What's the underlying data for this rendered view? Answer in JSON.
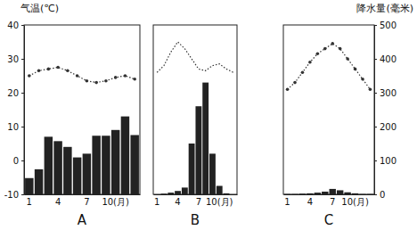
{
  "chart_data": [
    {
      "type": "combo",
      "title": "A",
      "y_label": "气温(℃)",
      "categories": [
        "1",
        null,
        null,
        "4",
        null,
        null,
        "7",
        null,
        null,
        "10(月)",
        null,
        null
      ],
      "ylim": [
        -10,
        40
      ],
      "yticks": [
        -10,
        0,
        10,
        20,
        30,
        40
      ],
      "y2lim": [
        0,
        500
      ],
      "series": [
        {
          "type": "bar",
          "axis": "y2",
          "color": "#222222",
          "values": [
            48,
            74,
            170,
            157,
            140,
            109,
            120,
            173,
            173,
            190,
            230,
            175
          ]
        },
        {
          "type": "line",
          "color": "#333333",
          "marker": "circle",
          "line_style": "dotted",
          "values": [
            25,
            26.5,
            27,
            27.5,
            26.5,
            25,
            23.5,
            23,
            23.5,
            24.5,
            25,
            24
          ]
        }
      ]
    },
    {
      "type": "combo",
      "title": "B",
      "categories": [
        "1",
        null,
        null,
        "4",
        null,
        null,
        "7",
        null,
        null,
        "10(月)",
        null,
        null
      ],
      "ylim": [
        -10,
        40
      ],
      "y2lim": [
        0,
        500
      ],
      "series": [
        {
          "type": "bar",
          "axis": "y2",
          "color": "#222222",
          "values": [
            0,
            2,
            5,
            10,
            20,
            150,
            260,
            330,
            120,
            25,
            3,
            0
          ]
        },
        {
          "type": "line",
          "color": "#333333",
          "line_style": "dotted",
          "values": [
            26,
            28,
            32,
            35,
            33,
            30,
            27,
            26.5,
            28,
            28.5,
            27,
            26
          ]
        }
      ]
    },
    {
      "type": "combo",
      "title": "C",
      "y2_label": "降水量(毫米)",
      "categories": [
        "1",
        null,
        null,
        "4",
        null,
        null,
        "7",
        null,
        null,
        "10(月)",
        null,
        null
      ],
      "ylim": [
        -10,
        40
      ],
      "y2lim": [
        0,
        500
      ],
      "y2ticks": [
        0,
        100,
        200,
        300,
        400,
        500
      ],
      "series": [
        {
          "type": "bar",
          "axis": "y2",
          "color": "#222222",
          "values": [
            1,
            1,
            2,
            3,
            5,
            8,
            16,
            12,
            6,
            3,
            1,
            1
          ]
        },
        {
          "type": "line",
          "color": "#333333",
          "marker": "circle",
          "line_style": "dotted",
          "values": [
            21,
            23,
            26,
            29,
            31.5,
            33,
            34.5,
            33,
            30,
            27,
            24,
            21
          ]
        }
      ]
    }
  ]
}
